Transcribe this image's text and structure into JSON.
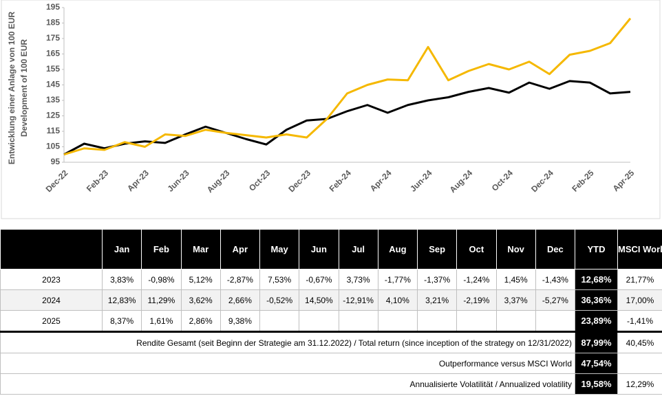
{
  "chart_data": {
    "type": "line",
    "ylabel": [
      "Entwicklung einer Anlage von 100 EUR",
      "Development of 100 EUR"
    ],
    "categories": [
      "Dec-22",
      null,
      "Feb-23",
      null,
      "Apr-23",
      null,
      "Jun-23",
      null,
      "Aug-23",
      null,
      "Oct-23",
      null,
      "Dec-23",
      null,
      "Feb-24",
      null,
      "Apr-24",
      null,
      "Jun-24",
      null,
      "Aug-24",
      null,
      "Oct-24",
      null,
      "Dec-24",
      null,
      "Feb-25",
      null,
      "Apr-25"
    ],
    "series": [
      {
        "color": "#000000",
        "values": [
          100,
          107,
          104,
          107,
          108.5,
          107.5,
          113,
          118,
          114,
          110,
          106.5,
          116,
          122,
          123,
          128,
          132,
          127,
          132,
          135,
          137,
          140.5,
          143,
          140,
          146.5,
          142.5,
          147.5,
          146.5,
          139.5,
          140.5
        ]
      },
      {
        "color": "#f5b800",
        "values": [
          100,
          104,
          103,
          108,
          105,
          113,
          112,
          116,
          114,
          112.5,
          111,
          113,
          111,
          123,
          139.5,
          145,
          148.5,
          148,
          169.5,
          148,
          154,
          158.5,
          155,
          160,
          152,
          164.5,
          167,
          172,
          188
        ]
      }
    ],
    "ylim": [
      95,
      195
    ],
    "yticks": [
      95,
      105,
      115,
      125,
      135,
      145,
      155,
      165,
      175,
      185,
      195
    ],
    "grid": false
  },
  "table": {
    "header": [
      null,
      "Jan",
      "Feb",
      "Mar",
      "Apr",
      "May",
      "Jun",
      "Jul",
      "Aug",
      "Sep",
      "Oct",
      "Nov",
      "Dec",
      "YTD",
      "MSCI World YTD"
    ],
    "rows": [
      [
        "2023",
        "3,83%",
        "-0,98%",
        "5,12%",
        "-2,87%",
        "7,53%",
        "-0,67%",
        "3,73%",
        "-1,77%",
        "-1,37%",
        "-1,24%",
        "1,45%",
        "-1,43%",
        "12,68%",
        "21,77%"
      ],
      [
        "2024",
        "12,83%",
        "11,29%",
        "3,62%",
        "2,66%",
        "-0,52%",
        "14,50%",
        "-12,91%",
        "4,10%",
        "3,21%",
        "-2,19%",
        "3,37%",
        "-5,27%",
        "36,36%",
        "17,00%"
      ],
      [
        "2025",
        "8,37%",
        "1,61%",
        "2,86%",
        "9,38%",
        null,
        null,
        null,
        null,
        null,
        null,
        null,
        null,
        "23,89%",
        "-1,41%"
      ]
    ],
    "summary": [
      [
        "Rendite Gesamt (seit Beginn der Strategie am 31.12.2022) / Total return (since inception of the strategy on 12/31/2022)",
        "87,99%",
        "40,45%"
      ],
      [
        "Outperformance versus MSCI World",
        "47,54%",
        null
      ],
      [
        "Annualisierte Volatilität / Annualized volatility",
        "19,58%",
        "12,29%"
      ]
    ]
  }
}
